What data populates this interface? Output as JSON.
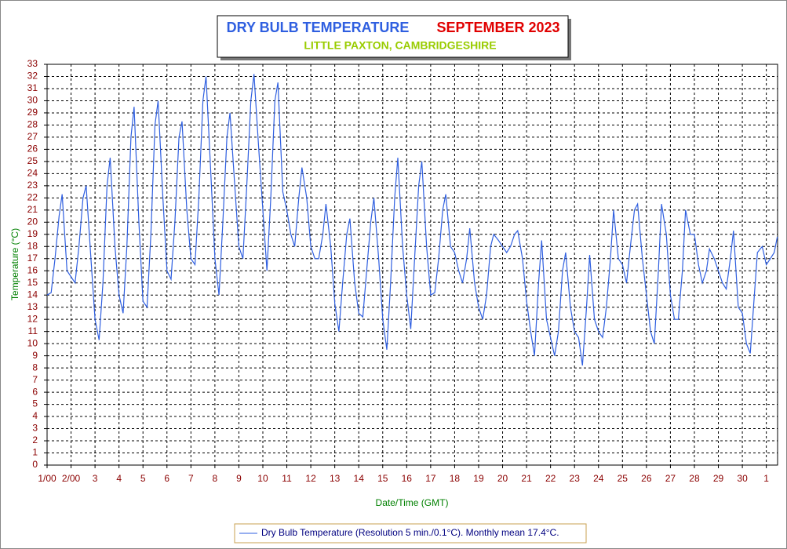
{
  "chart_data": {
    "type": "line",
    "title": "DRY BULB TEMPERATURE",
    "title_period": "SEPTEMBER 2023",
    "subtitle": "LITTLE PAXTON, CAMBRIDGESHIRE",
    "x_label": "Date/Time (GMT)",
    "y_label": "Temperature (°C)",
    "xlim": [
      0,
      30.47
    ],
    "ylim": [
      0,
      33
    ],
    "grid": true,
    "xticks": [
      {
        "value": 0,
        "label": "1/00"
      },
      {
        "value": 1,
        "label": "2/00"
      },
      {
        "value": 2,
        "label": "3"
      },
      {
        "value": 3,
        "label": "4"
      },
      {
        "value": 4,
        "label": "5"
      },
      {
        "value": 5,
        "label": "6"
      },
      {
        "value": 6,
        "label": "7"
      },
      {
        "value": 7,
        "label": "8"
      },
      {
        "value": 8,
        "label": "9"
      },
      {
        "value": 9,
        "label": "10"
      },
      {
        "value": 10,
        "label": "11"
      },
      {
        "value": 11,
        "label": "12"
      },
      {
        "value": 12,
        "label": "13"
      },
      {
        "value": 13,
        "label": "14"
      },
      {
        "value": 14,
        "label": "15"
      },
      {
        "value": 15,
        "label": "16"
      },
      {
        "value": 16,
        "label": "17"
      },
      {
        "value": 17,
        "label": "18"
      },
      {
        "value": 18,
        "label": "19"
      },
      {
        "value": 19,
        "label": "20"
      },
      {
        "value": 20,
        "label": "21"
      },
      {
        "value": 21,
        "label": "22"
      },
      {
        "value": 22,
        "label": "23"
      },
      {
        "value": 23,
        "label": "24"
      },
      {
        "value": 24,
        "label": "25"
      },
      {
        "value": 25,
        "label": "26"
      },
      {
        "value": 26,
        "label": "27"
      },
      {
        "value": 27,
        "label": "28"
      },
      {
        "value": 28,
        "label": "29"
      },
      {
        "value": 29,
        "label": "30"
      },
      {
        "value": 30,
        "label": "1"
      }
    ],
    "yticks": [
      0,
      1,
      2,
      3,
      4,
      5,
      6,
      7,
      8,
      9,
      10,
      11,
      12,
      13,
      14,
      15,
      16,
      17,
      18,
      19,
      20,
      21,
      22,
      23,
      24,
      25,
      26,
      27,
      28,
      29,
      30,
      31,
      32,
      33
    ],
    "x": [
      0,
      0.17,
      0.33,
      0.5,
      0.63,
      0.83,
      1,
      1.17,
      1.33,
      1.5,
      1.63,
      1.83,
      2,
      2.17,
      2.33,
      2.5,
      2.63,
      2.83,
      3,
      3.17,
      3.33,
      3.5,
      3.63,
      3.83,
      4,
      4.17,
      4.33,
      4.5,
      4.63,
      4.83,
      5,
      5.17,
      5.33,
      5.5,
      5.63,
      5.83,
      6,
      6.17,
      6.33,
      6.5,
      6.63,
      6.83,
      7,
      7.17,
      7.33,
      7.5,
      7.63,
      7.83,
      8,
      8.17,
      8.33,
      8.5,
      8.63,
      8.83,
      9,
      9.17,
      9.33,
      9.5,
      9.63,
      9.83,
      10,
      10.17,
      10.33,
      10.5,
      10.63,
      10.83,
      11,
      11.17,
      11.33,
      11.5,
      11.63,
      11.83,
      12,
      12.17,
      12.33,
      12.5,
      12.63,
      12.83,
      13,
      13.17,
      13.33,
      13.5,
      13.63,
      13.83,
      14,
      14.17,
      14.33,
      14.5,
      14.63,
      14.83,
      15,
      15.17,
      15.33,
      15.5,
      15.63,
      15.83,
      16,
      16.17,
      16.33,
      16.5,
      16.63,
      16.83,
      17,
      17.17,
      17.33,
      17.5,
      17.63,
      17.83,
      18,
      18.17,
      18.33,
      18.5,
      18.63,
      18.83,
      19,
      19.17,
      19.33,
      19.5,
      19.63,
      19.83,
      20,
      20.17,
      20.33,
      20.5,
      20.63,
      20.83,
      21,
      21.17,
      21.33,
      21.5,
      21.63,
      21.83,
      22,
      22.17,
      22.33,
      22.5,
      22.63,
      22.83,
      23,
      23.17,
      23.33,
      23.5,
      23.63,
      23.83,
      24,
      24.17,
      24.33,
      24.5,
      24.63,
      24.83,
      25,
      25.17,
      25.33,
      25.5,
      25.63,
      25.83,
      26,
      26.17,
      26.33,
      26.5,
      26.63,
      26.83,
      27,
      27.17,
      27.33,
      27.5,
      27.63,
      27.83,
      28,
      28.17,
      28.33,
      28.5,
      28.63,
      28.83,
      29,
      29.17,
      29.33,
      29.5,
      29.63,
      29.83,
      30,
      30.17,
      30.33,
      30.46
    ],
    "series": [
      {
        "name": "Dry Bulb Temperature (Resolution 5 min./0.1°C). Monthly mean 17.4°C.",
        "color": "#2f5fe0",
        "values": [
          14,
          14.2,
          17,
          20.5,
          22.3,
          16,
          15.5,
          15,
          18,
          22,
          23,
          17,
          12,
          10.3,
          15,
          23,
          25.3,
          18,
          14,
          12.5,
          18,
          27,
          29.5,
          20,
          13.5,
          13,
          19,
          28,
          30,
          22,
          16,
          15.3,
          20,
          27,
          28.3,
          21,
          17,
          16.5,
          22,
          30,
          32,
          24,
          17,
          14,
          20,
          27,
          29,
          23,
          18,
          17,
          23,
          30,
          32.2,
          26,
          21,
          16,
          22,
          30,
          31.5,
          22.5,
          21,
          19,
          18,
          22,
          24.5,
          22,
          18,
          17,
          17,
          19,
          21.5,
          18,
          13.3,
          11,
          15,
          19,
          20.3,
          15,
          12.5,
          12.2,
          16,
          20,
          22,
          17,
          12,
          9.5,
          15,
          22,
          25.3,
          18,
          14,
          11.2,
          17,
          23,
          25,
          18,
          14,
          14.2,
          17,
          21,
          22.3,
          18,
          17.5,
          16,
          15,
          17,
          19.5,
          15,
          13,
          12,
          14,
          18,
          19,
          18.5,
          18,
          17.5,
          18,
          19,
          19.3,
          17,
          13.5,
          11,
          9,
          15,
          18.5,
          12,
          10.5,
          9,
          11,
          16,
          17.5,
          13,
          11,
          10.5,
          8.2,
          13,
          17.3,
          12,
          11,
          10.5,
          13,
          17,
          21,
          17,
          16.5,
          15,
          18,
          21,
          21.5,
          17,
          14,
          11,
          10,
          16,
          21.5,
          19,
          14,
          12,
          12,
          16,
          21,
          19,
          19,
          16.5,
          15,
          16,
          17.8,
          17,
          16,
          15,
          14.5,
          17,
          19.3,
          13,
          12.5,
          10,
          9.2,
          14,
          17.5,
          18,
          16.5,
          17,
          17.5,
          18.8
        ]
      }
    ]
  }
}
